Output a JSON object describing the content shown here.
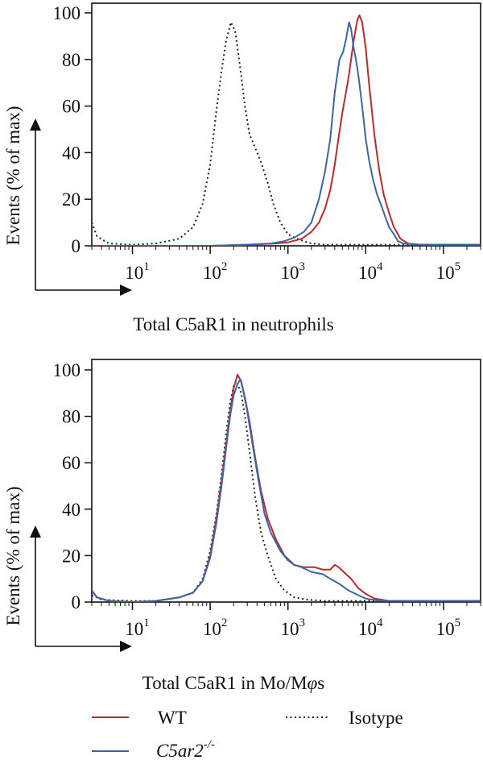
{
  "chart_data": [
    {
      "type": "line",
      "title": "",
      "xlabel": "Total C5aR1 in neutrophils",
      "ylabel": "Events (% of max)",
      "x_scale": "log",
      "xlim": [
        3,
        300000
      ],
      "ylim": [
        0,
        100
      ],
      "yticks": [
        0,
        20,
        40,
        60,
        80,
        100
      ],
      "xticks": [
        {
          "base": "10",
          "exp": "1",
          "value": 10
        },
        {
          "base": "10",
          "exp": "2",
          "value": 100
        },
        {
          "base": "10",
          "exp": "3",
          "value": 1000
        },
        {
          "base": "10",
          "exp": "4",
          "value": 10000
        },
        {
          "base": "10",
          "exp": "5",
          "value": 100000
        }
      ],
      "series": [
        {
          "key": "isotype",
          "color": "#222222",
          "style": "dotted",
          "points": [
            [
              3,
              10
            ],
            [
              3.5,
              4
            ],
            [
              5,
              1
            ],
            [
              10,
              0.5
            ],
            [
              20,
              1
            ],
            [
              40,
              3
            ],
            [
              60,
              8
            ],
            [
              80,
              18
            ],
            [
              100,
              35
            ],
            [
              120,
              58
            ],
            [
              140,
              75
            ],
            [
              160,
              88
            ],
            [
              185,
              96
            ],
            [
              210,
              92
            ],
            [
              240,
              78
            ],
            [
              280,
              60
            ],
            [
              320,
              48
            ],
            [
              380,
              42
            ],
            [
              450,
              36
            ],
            [
              550,
              27
            ],
            [
              650,
              18
            ],
            [
              800,
              10
            ],
            [
              1000,
              5
            ],
            [
              1300,
              3
            ],
            [
              1600,
              2
            ],
            [
              2000,
              1
            ],
            [
              3000,
              0.5
            ],
            [
              300000,
              0.5
            ]
          ]
        },
        {
          "key": "wt",
          "color": "#c0282d",
          "style": "solid",
          "points": [
            [
              3,
              0
            ],
            [
              100,
              0
            ],
            [
              300,
              0.5
            ],
            [
              700,
              1
            ],
            [
              1000,
              1.5
            ],
            [
              1500,
              3
            ],
            [
              2000,
              6
            ],
            [
              2500,
              10
            ],
            [
              3000,
              16
            ],
            [
              3500,
              24
            ],
            [
              4000,
              35
            ],
            [
              4500,
              47
            ],
            [
              5000,
              57
            ],
            [
              6000,
              72
            ],
            [
              7000,
              88
            ],
            [
              7800,
              97
            ],
            [
              8300,
              99
            ],
            [
              9000,
              96
            ],
            [
              10000,
              85
            ],
            [
              11000,
              70
            ],
            [
              12000,
              58
            ],
            [
              13000,
              47
            ],
            [
              15000,
              32
            ],
            [
              17000,
              22
            ],
            [
              20000,
              14
            ],
            [
              23000,
              8
            ],
            [
              28000,
              3
            ],
            [
              35000,
              1
            ],
            [
              50000,
              0.5
            ],
            [
              300000,
              0.5
            ]
          ]
        },
        {
          "key": "c5ar2ko",
          "color": "#3b66a5",
          "style": "solid",
          "points": [
            [
              3,
              0
            ],
            [
              100,
              0
            ],
            [
              300,
              0.5
            ],
            [
              600,
              1
            ],
            [
              900,
              2
            ],
            [
              1200,
              3.5
            ],
            [
              1600,
              6
            ],
            [
              2000,
              10
            ],
            [
              2500,
              20
            ],
            [
              3000,
              32
            ],
            [
              3500,
              46
            ],
            [
              4000,
              66
            ],
            [
              4600,
              80
            ],
            [
              5100,
              83
            ],
            [
              5600,
              89
            ],
            [
              6100,
              96
            ],
            [
              6500,
              93
            ],
            [
              7000,
              85
            ],
            [
              7500,
              80
            ],
            [
              8000,
              74
            ],
            [
              9000,
              60
            ],
            [
              10000,
              46
            ],
            [
              11000,
              37
            ],
            [
              12500,
              28
            ],
            [
              14000,
              22
            ],
            [
              16000,
              17
            ],
            [
              18000,
              12
            ],
            [
              20000,
              8
            ],
            [
              23000,
              5
            ],
            [
              26000,
              2
            ],
            [
              30000,
              1
            ],
            [
              50000,
              0.5
            ],
            [
              300000,
              0.5
            ]
          ]
        }
      ]
    },
    {
      "type": "line",
      "title": "",
      "xlabel_prefix": "Total C5aR1 in Mo/M",
      "xlabel_phi": "φ",
      "xlabel_suffix": "s",
      "ylabel": "Events (% of max)",
      "x_scale": "log",
      "xlim": [
        3,
        300000
      ],
      "ylim": [
        0,
        100
      ],
      "yticks": [
        0,
        20,
        40,
        60,
        80,
        100
      ],
      "xticks": [
        {
          "base": "10",
          "exp": "1",
          "value": 10
        },
        {
          "base": "10",
          "exp": "2",
          "value": 100
        },
        {
          "base": "10",
          "exp": "3",
          "value": 1000
        },
        {
          "base": "10",
          "exp": "4",
          "value": 10000
        },
        {
          "base": "10",
          "exp": "5",
          "value": 100000
        }
      ],
      "series": [
        {
          "key": "isotype",
          "color": "#222222",
          "style": "dotted",
          "points": [
            [
              3,
              3
            ],
            [
              4,
              1
            ],
            [
              10,
              0.5
            ],
            [
              20,
              0.5
            ],
            [
              40,
              2
            ],
            [
              60,
              4
            ],
            [
              80,
              10
            ],
            [
              100,
              22
            ],
            [
              120,
              38
            ],
            [
              140,
              55
            ],
            [
              160,
              72
            ],
            [
              180,
              86
            ],
            [
              200,
              93
            ],
            [
              225,
              94
            ],
            [
              250,
              90
            ],
            [
              280,
              80
            ],
            [
              320,
              65
            ],
            [
              380,
              45
            ],
            [
              450,
              30
            ],
            [
              550,
              20
            ],
            [
              700,
              10
            ],
            [
              900,
              5
            ],
            [
              1200,
              2
            ],
            [
              1800,
              1
            ],
            [
              3000,
              0.5
            ],
            [
              300000,
              0.5
            ]
          ]
        },
        {
          "key": "wt",
          "color": "#c0282d",
          "style": "solid",
          "points": [
            [
              3,
              5
            ],
            [
              3.5,
              2
            ],
            [
              5,
              0.5
            ],
            [
              10,
              0
            ],
            [
              20,
              0.5
            ],
            [
              40,
              2
            ],
            [
              60,
              4
            ],
            [
              80,
              9
            ],
            [
              100,
              20
            ],
            [
              120,
              36
            ],
            [
              140,
              52
            ],
            [
              160,
              68
            ],
            [
              180,
              82
            ],
            [
              200,
              92
            ],
            [
              225,
              98
            ],
            [
              250,
              95
            ],
            [
              280,
              88
            ],
            [
              320,
              78
            ],
            [
              380,
              62
            ],
            [
              450,
              48
            ],
            [
              550,
              36
            ],
            [
              700,
              27
            ],
            [
              900,
              20
            ],
            [
              1200,
              16
            ],
            [
              1600,
              15
            ],
            [
              2200,
              15
            ],
            [
              2800,
              14
            ],
            [
              3500,
              14
            ],
            [
              4000,
              16
            ],
            [
              4500,
              15
            ],
            [
              5200,
              13
            ],
            [
              6500,
              10
            ],
            [
              8000,
              6
            ],
            [
              10000,
              3.5
            ],
            [
              13000,
              1.5
            ],
            [
              20000,
              0.5
            ],
            [
              300000,
              0.5
            ]
          ]
        },
        {
          "key": "c5ar2ko",
          "color": "#3b66a5",
          "style": "solid",
          "points": [
            [
              3,
              5
            ],
            [
              3.5,
              2
            ],
            [
              5,
              0.5
            ],
            [
              10,
              0
            ],
            [
              20,
              0.5
            ],
            [
              40,
              2
            ],
            [
              60,
              4
            ],
            [
              80,
              9
            ],
            [
              100,
              19
            ],
            [
              120,
              34
            ],
            [
              140,
              50
            ],
            [
              160,
              66
            ],
            [
              180,
              80
            ],
            [
              200,
              89
            ],
            [
              225,
              94
            ],
            [
              245,
              96
            ],
            [
              270,
              90
            ],
            [
              300,
              82
            ],
            [
              350,
              68
            ],
            [
              420,
              52
            ],
            [
              500,
              38
            ],
            [
              600,
              30
            ],
            [
              800,
              22
            ],
            [
              1000,
              18
            ],
            [
              1200,
              16
            ],
            [
              1500,
              15
            ],
            [
              2000,
              13
            ],
            [
              2800,
              12
            ],
            [
              3500,
              10
            ],
            [
              4500,
              8
            ],
            [
              6000,
              5
            ],
            [
              8000,
              3
            ],
            [
              10000,
              1.5
            ],
            [
              15000,
              0.5
            ],
            [
              300000,
              0.5
            ]
          ]
        }
      ]
    }
  ],
  "legend": {
    "items": [
      {
        "key": "wt",
        "label": "WT",
        "sup": "",
        "italic": false,
        "color": "#c0282d",
        "style": "solid"
      },
      {
        "key": "c5ar2ko",
        "label": "C5ar2",
        "sup": "-/-",
        "italic": true,
        "color": "#3b66a5",
        "style": "solid"
      },
      {
        "key": "isotype",
        "label": "Isotype",
        "sup": "",
        "italic": false,
        "color": "#222222",
        "style": "dotted"
      }
    ]
  }
}
